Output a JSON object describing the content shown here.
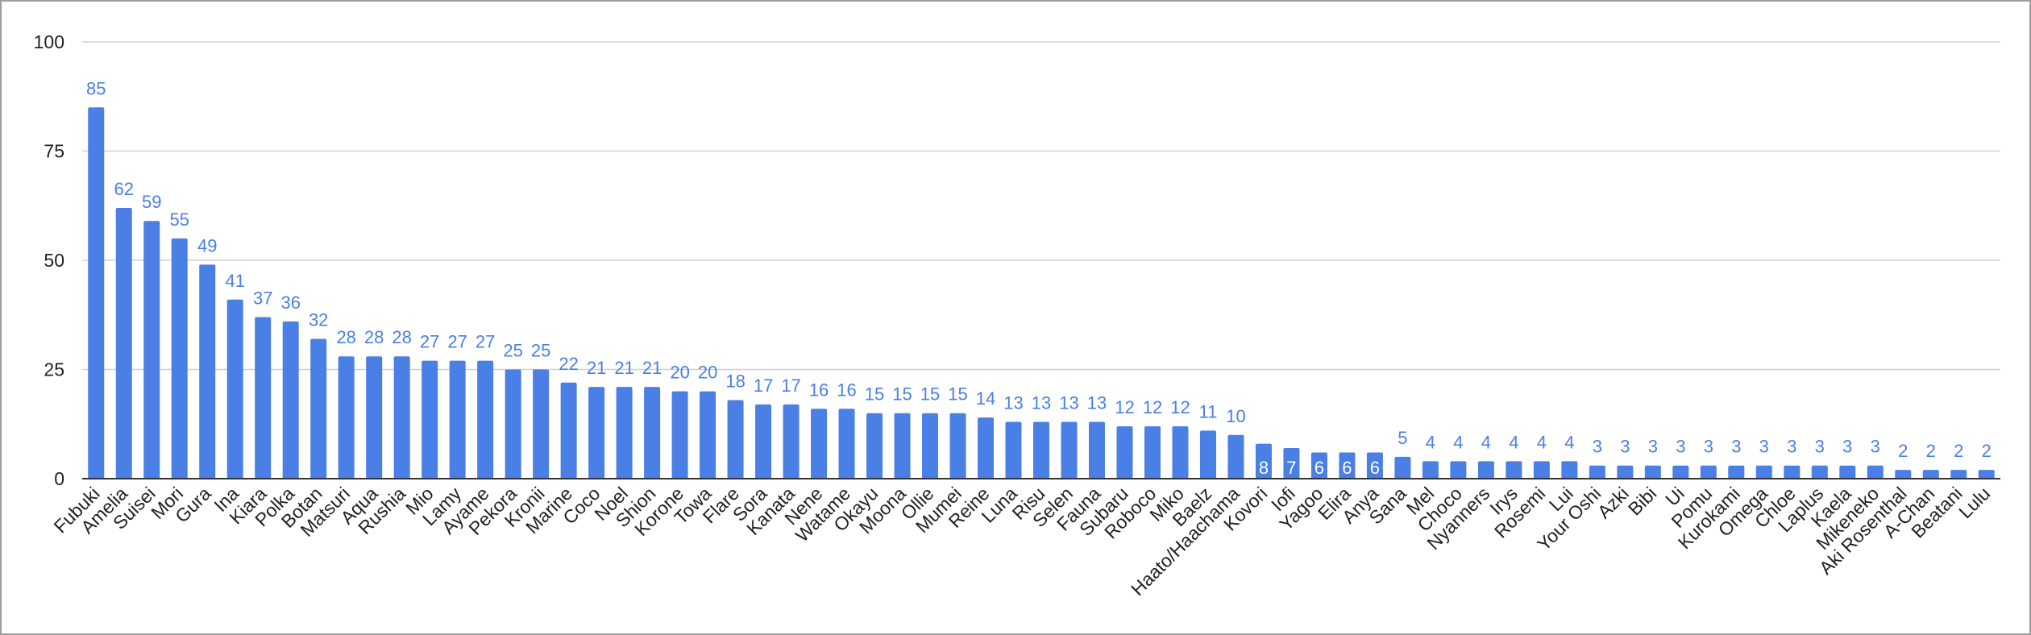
{
  "chart_data": {
    "type": "bar",
    "title": "",
    "xlabel": "",
    "ylabel": "",
    "ylim": [
      0,
      100
    ],
    "yticks": [
      "0",
      "25",
      "50",
      "75",
      "100"
    ],
    "grid": true,
    "legend": "none",
    "bar_color": "#4a7fe6",
    "label_color": "#4a7fe6",
    "inside_label_color": "#ffffff",
    "gridline_color": "#d0d0d0",
    "axis_color": "#333333",
    "categories": [
      "Fubuki",
      "Amelia",
      "Suisei",
      "Mori",
      "Gura",
      "Ina",
      "Kiara",
      "Polka",
      "Botan",
      "Matsuri",
      "Aqua",
      "Rushia",
      "Mio",
      "Lamy",
      "Ayame",
      "Pekora",
      "Kronii",
      "Marine",
      "Coco",
      "Noel",
      "Shion",
      "Korone",
      "Towa",
      "Flare",
      "Sora",
      "Kanata",
      "Nene",
      "Watame",
      "Okayu",
      "Moona",
      "Ollie",
      "Mumei",
      "Reine",
      "Luna",
      "Risu",
      "Selen",
      "Fauna",
      "Subaru",
      "Roboco",
      "Miko",
      "Baelz",
      "Haato/Haachama",
      "Kovori",
      "Iofi",
      "Yagoo",
      "Elira",
      "Anya",
      "Sana",
      "Mel",
      "Choco",
      "Nyanners",
      "Irys",
      "Rosemi",
      "Lui",
      "Your Oshi",
      "Azki",
      "Bibi",
      "Ui",
      "Pomu",
      "Kurokami",
      "Omega",
      "Chloe",
      "Laplus",
      "Kaela",
      "Mikeneko",
      "Aki Rosenthal",
      "A-Chan",
      "Beatani",
      "Lulu"
    ],
    "values": [
      85,
      62,
      59,
      55,
      49,
      41,
      37,
      36,
      32,
      28,
      28,
      28,
      27,
      27,
      27,
      25,
      25,
      22,
      21,
      21,
      21,
      20,
      20,
      18,
      17,
      17,
      16,
      16,
      15,
      15,
      15,
      15,
      14,
      13,
      13,
      13,
      13,
      12,
      12,
      12,
      11,
      10,
      8,
      7,
      6,
      6,
      6,
      5,
      4,
      4,
      4,
      4,
      4,
      4,
      3,
      3,
      3,
      3,
      3,
      3,
      3,
      3,
      3,
      3,
      3,
      2,
      2,
      2,
      2
    ],
    "labels_inside": [
      "Kovori",
      "Iofi",
      "Yagoo",
      "Elira",
      "Anya"
    ]
  }
}
